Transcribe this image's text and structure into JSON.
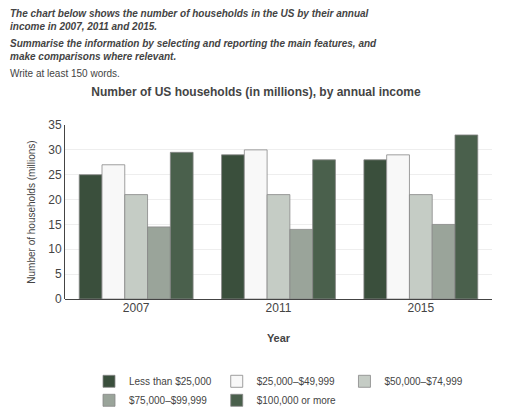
{
  "chart_data": {
    "type": "bar",
    "title": "Number of US households (in millions), by annual income",
    "annotations": [
      "The chart below shows the number of households in the US by their annual",
      "income in 2007, 2011 and 2015.",
      "Summarise the information by selecting and reporting the main features, and",
      "make comparisons where relevant.",
      "Write at least 150 words."
    ],
    "xlabel": "Year",
    "ylabel": "Number of households (millions)",
    "categories": [
      "2007",
      "2011",
      "2015"
    ],
    "series": [
      {
        "name": "Less than $25,000",
        "color": "#3a4f3c",
        "values": [
          25,
          29,
          28
        ]
      },
      {
        "name": "$25,000–$49,999",
        "color": "#f8f8f8",
        "values": [
          27,
          30,
          29
        ]
      },
      {
        "name": "$50,000–$74,999",
        "color": "#c5ccc5",
        "values": [
          21,
          21,
          21
        ]
      },
      {
        "name": "$75,000–$99,999",
        "color": "#9aa49a",
        "values": [
          14.5,
          14,
          15
        ]
      },
      {
        "name": "$100,000 or more",
        "color": "#4a604c",
        "values": [
          29.5,
          28,
          33
        ]
      }
    ],
    "ylim": [
      0,
      35
    ],
    "yticks": [
      0,
      5,
      10,
      15,
      20,
      25,
      30,
      35
    ],
    "grid": true,
    "legend": "bottom"
  }
}
